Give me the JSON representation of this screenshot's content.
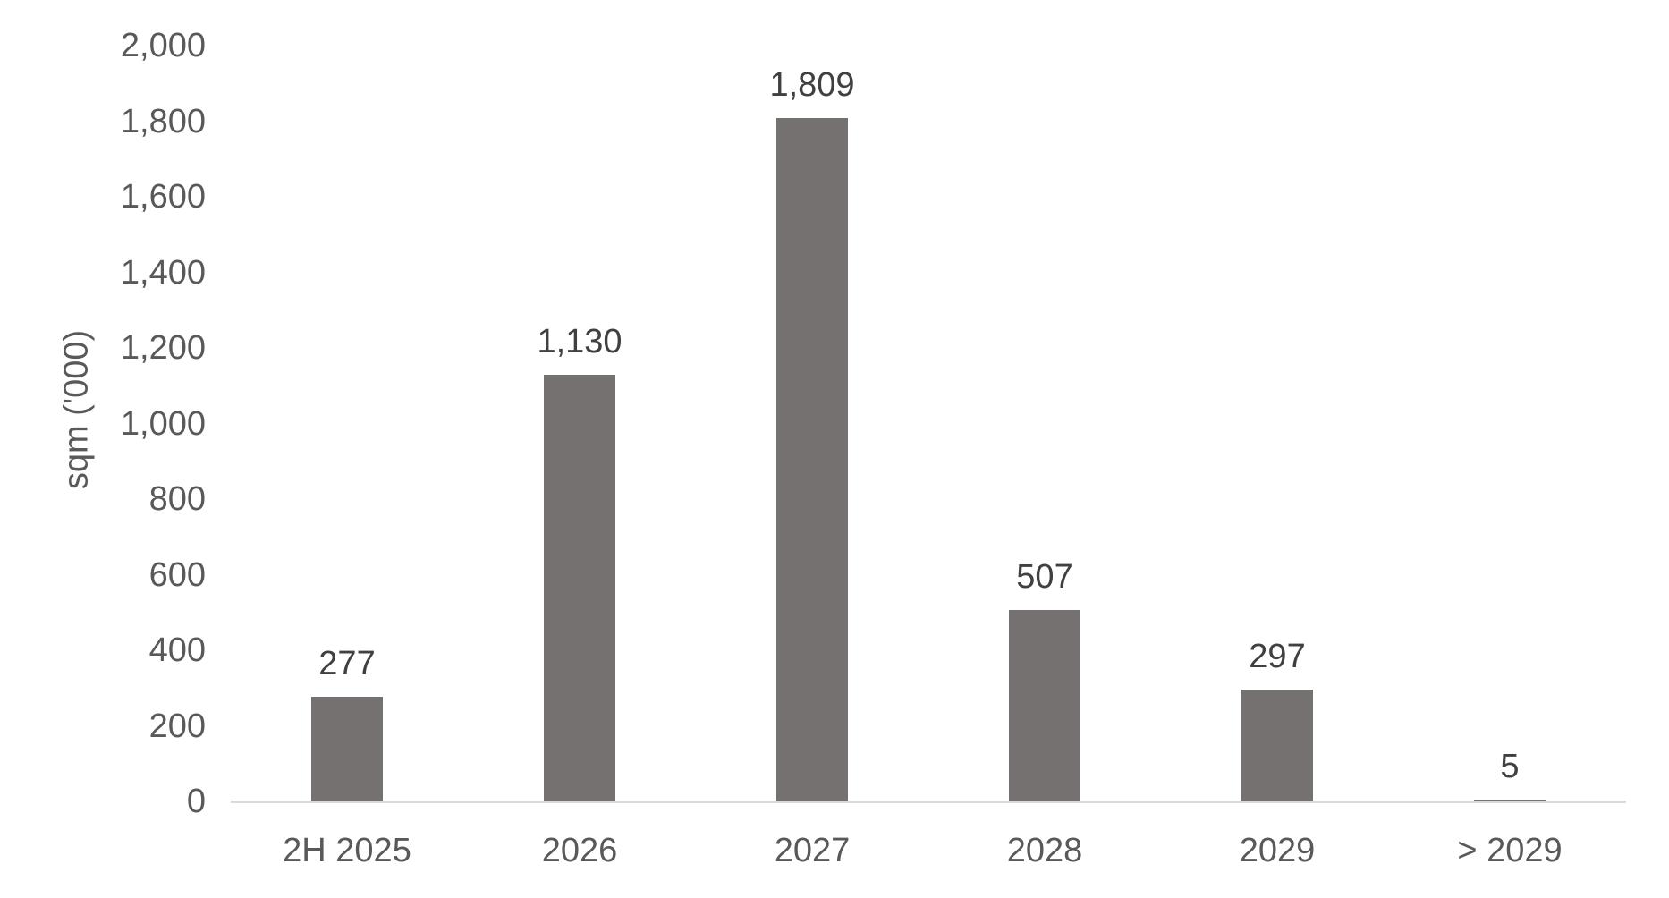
{
  "chart_data": {
    "type": "bar",
    "title": "",
    "categories": [
      "2H 2025",
      "2026",
      "2027",
      "2028",
      "2029",
      "> 2029"
    ],
    "values": [
      277,
      1130,
      1809,
      507,
      297,
      5
    ],
    "value_labels": [
      "277",
      "1,130",
      "1,809",
      "507",
      "297",
      "5"
    ],
    "xlabel": "",
    "ylabel": "sqm ('000)",
    "ylim": [
      0,
      2000
    ],
    "ytick_step": 200,
    "ytick_labels": [
      "0",
      "200",
      "400",
      "600",
      "800",
      "1,000",
      "1,200",
      "1,400",
      "1,600",
      "1,800",
      "2,000"
    ],
    "grid": false,
    "legend": null,
    "colors": {
      "bar": "#767171",
      "axis_line": "#d9d9d9",
      "tick_label": "#595959",
      "data_label": "#404040",
      "background": "#ffffff"
    }
  }
}
